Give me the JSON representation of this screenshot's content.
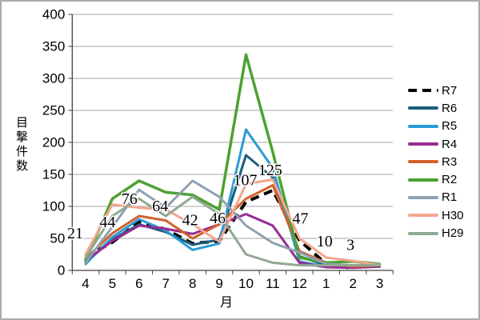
{
  "chart_data": {
    "type": "line",
    "title": "",
    "xlabel": "月",
    "ylabel": "目撃件数",
    "ylim": [
      0,
      400
    ],
    "ytick_step": 50,
    "grid": true,
    "legend_position": "right",
    "categories": [
      "4",
      "5",
      "6",
      "7",
      "8",
      "9",
      "10",
      "11",
      "12",
      "1",
      "2",
      "3"
    ],
    "colors": {
      "grid": "#A6A6A6",
      "axis": "#404040",
      "frame": "#ABABAB",
      "data_label": "#000000"
    },
    "series": [
      {
        "name": "R7",
        "color": "#000000",
        "dash": [
          11,
          7
        ],
        "width": 4,
        "values": [
          21,
          44,
          76,
          64,
          42,
          46,
          107,
          125,
          47,
          10,
          3,
          null
        ],
        "label_offsets": [
          [
            -13,
            -23
          ],
          [
            -6,
            -19
          ],
          [
            -12,
            -22
          ],
          [
            -7,
            -23
          ],
          [
            -3,
            -23
          ],
          [
            -2,
            -22
          ],
          [
            -1,
            -21
          ],
          [
            -3,
            -19
          ],
          [
            1,
            -21
          ],
          [
            -2,
            -22
          ],
          [
            -3,
            -23
          ],
          [
            0,
            0
          ]
        ]
      },
      {
        "name": "R6",
        "color": "#1C5D7D",
        "width": 3,
        "values": [
          13,
          48,
          72,
          60,
          40,
          48,
          180,
          145,
          22,
          8,
          5,
          6
        ]
      },
      {
        "name": "R5",
        "color": "#2D9BD4",
        "width": 3,
        "values": [
          10,
          52,
          80,
          62,
          32,
          42,
          220,
          160,
          14,
          6,
          5,
          6
        ]
      },
      {
        "name": "R4",
        "color": "#982B92",
        "width": 3,
        "values": [
          15,
          46,
          70,
          65,
          57,
          72,
          88,
          70,
          12,
          5,
          4,
          6
        ]
      },
      {
        "name": "R3",
        "color": "#D2612B",
        "width": 3,
        "values": [
          18,
          58,
          85,
          78,
          50,
          72,
          112,
          133,
          30,
          12,
          6,
          8
        ]
      },
      {
        "name": "R2",
        "color": "#4CA232",
        "width": 3.5,
        "values": [
          15,
          112,
          140,
          122,
          118,
          95,
          337,
          185,
          20,
          12,
          14,
          10
        ]
      },
      {
        "name": "R1",
        "color": "#8EA1B3",
        "width": 3,
        "values": [
          12,
          68,
          126,
          98,
          140,
          115,
          70,
          43,
          28,
          10,
          8,
          10
        ]
      },
      {
        "name": "H30",
        "color": "#F4A68E",
        "width": 3,
        "values": [
          25,
          103,
          98,
          95,
          72,
          45,
          135,
          142,
          50,
          20,
          15,
          8
        ]
      },
      {
        "name": "H29",
        "color": "#91A893",
        "width": 3,
        "values": [
          20,
          85,
          112,
          85,
          115,
          88,
          25,
          12,
          8,
          8,
          8,
          8
        ]
      }
    ]
  }
}
